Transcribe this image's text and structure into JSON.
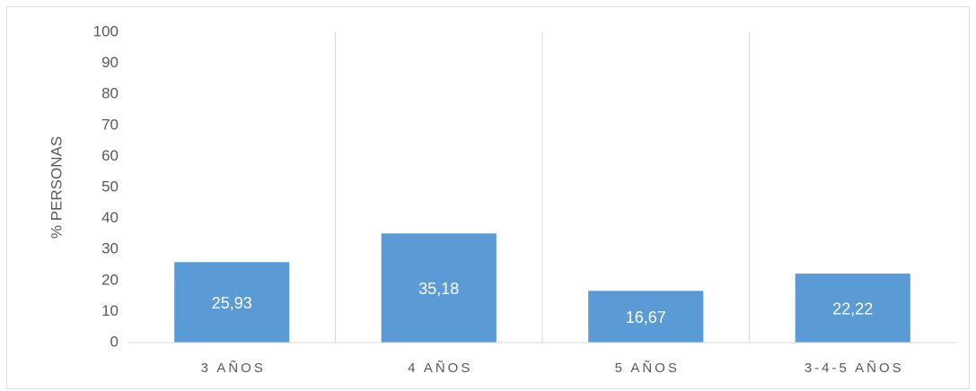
{
  "chart_data": {
    "type": "bar",
    "y_label": "% PERSONAS",
    "categories": [
      "3 AÑOS",
      "4 AÑOS",
      "5 AÑOS",
      "3-4-5 AÑOS"
    ],
    "values": [
      25.93,
      35.18,
      16.67,
      22.22
    ],
    "value_labels": [
      "25,93",
      "35,18",
      "16,67",
      "22,22"
    ],
    "color": "#5b9bd5",
    "ylim": [
      0,
      100
    ],
    "yticks": [
      0,
      10,
      20,
      30,
      40,
      50,
      60,
      70,
      80,
      90,
      100
    ],
    "grid": false
  }
}
